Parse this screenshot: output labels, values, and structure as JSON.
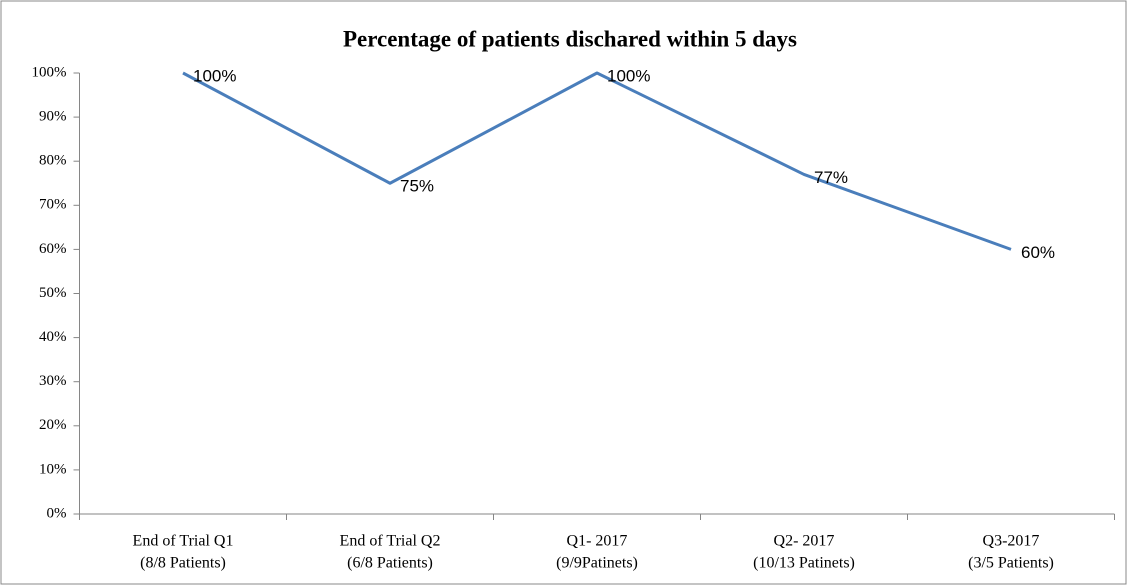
{
  "chart_data": {
    "type": "line",
    "title": "Percentage of patients dischared within 5 days",
    "categories": [
      [
        "End of Trial Q1",
        "(8/8 Patients)"
      ],
      [
        "End of Trial Q2",
        "(6/8 Patients)"
      ],
      [
        "Q1- 2017",
        "(9/9Patinets)"
      ],
      [
        "Q2- 2017",
        "(10/13 Patinets)"
      ],
      [
        "Q3-2017",
        "(3/5 Patients)"
      ]
    ],
    "values": [
      100,
      75,
      100,
      77,
      60
    ],
    "value_labels": [
      "100%",
      "75%",
      "100%",
      "77%",
      "60%"
    ],
    "color": "#4a7ebb",
    "ylim": [
      0,
      100
    ],
    "yticks": [
      {
        "value": 0,
        "label": "0%"
      },
      {
        "value": 10,
        "label": "10%"
      },
      {
        "value": 20,
        "label": "20%"
      },
      {
        "value": 30,
        "label": "30%"
      },
      {
        "value": 40,
        "label": "40%"
      },
      {
        "value": 50,
        "label": "50%"
      },
      {
        "value": 60,
        "label": "60%"
      },
      {
        "value": 70,
        "label": "70%"
      },
      {
        "value": 80,
        "label": "80%"
      },
      {
        "value": 90,
        "label": "90%"
      },
      {
        "value": 100,
        "label": "100%"
      }
    ],
    "grid": false
  }
}
